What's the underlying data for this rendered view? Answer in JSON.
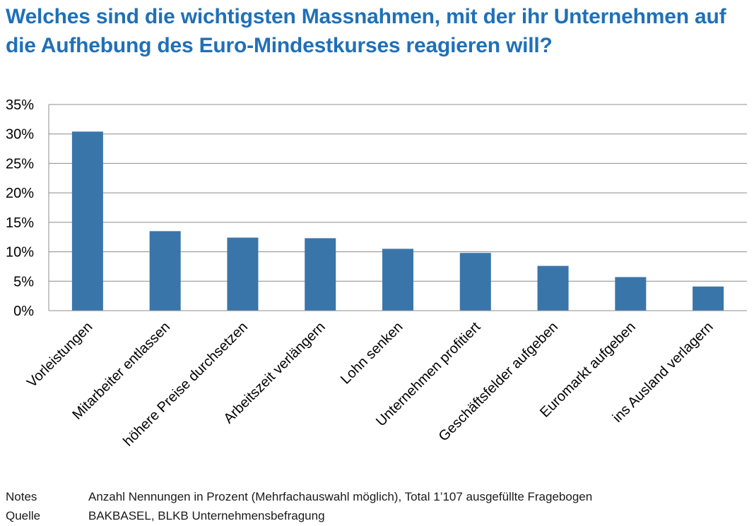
{
  "colors": {
    "title": "#1F70B8",
    "bar": "#3A75AA",
    "grid": "#8C8C8C",
    "axis_text": "#000000"
  },
  "chart_data": {
    "type": "bar",
    "title": "Welches sind die wichtigsten Massnahmen, mit der ihr Unternehmen auf die Aufhebung des Euro-Mindestkurses reagieren will?",
    "categories": [
      "Vorleistungen",
      "Mitarbeiter entlassen",
      "höhere Preise durchsetzen",
      "Arbeitszeit verlängern",
      "Lohn senken",
      "Unternehmen profitiert",
      "Geschäftsfelder aufgeben",
      "Euromarkt aufgeben",
      "ins Ausland verlagern"
    ],
    "values": [
      30.4,
      13.5,
      12.4,
      12.3,
      10.5,
      9.8,
      7.6,
      5.7,
      4.1
    ],
    "y_ticks": [
      0,
      5,
      10,
      15,
      20,
      25,
      30,
      35
    ],
    "y_tick_labels": [
      "0%",
      "5%",
      "10%",
      "15%",
      "20%",
      "25%",
      "30%",
      "35%"
    ],
    "ylim": [
      0,
      35
    ],
    "xlabel": "",
    "ylabel": "",
    "grid": true,
    "legend": "none"
  },
  "notes": [
    {
      "key": "Notes",
      "text": "Anzahl Nennungen in Prozent (Mehrfachauswahl möglich), Total 1’107 ausgefüllte Fragebogen"
    },
    {
      "key": "Quelle",
      "text": "BAKBASEL, BLKB Unternehmensbefragung"
    }
  ]
}
